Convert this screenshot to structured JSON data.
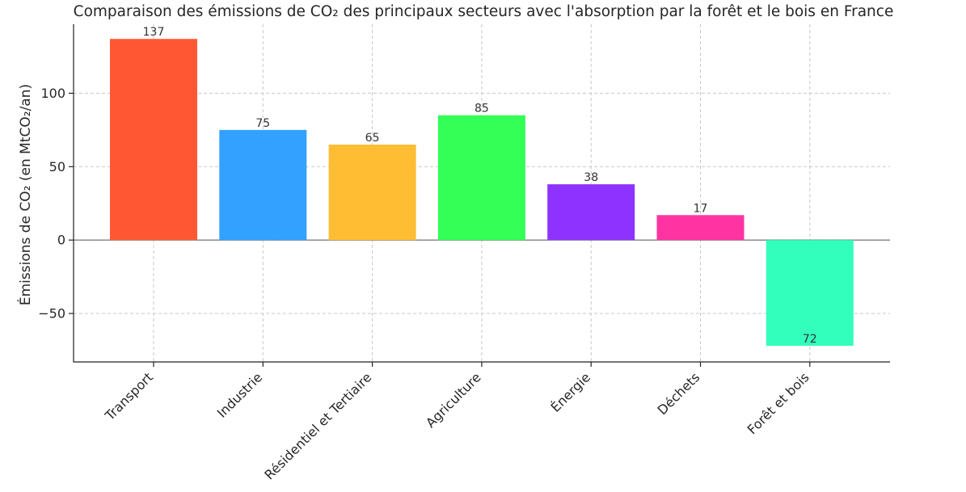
{
  "chart_data": {
    "type": "bar",
    "title": "Comparaison des émissions de CO₂ des principaux secteurs avec l'absorption par la forêt et le bois en France",
    "xlabel": "",
    "ylabel": "Émissions de CO₂ (en MtCO₂/an)",
    "categories": [
      "Transport",
      "Industrie",
      "Résidentiel et Tertiaire",
      "Agriculture",
      "Énergie",
      "Déchets",
      "Forêt et bois"
    ],
    "values": [
      137,
      75,
      65,
      85,
      38,
      17,
      -72
    ],
    "data_labels": [
      "137",
      "75",
      "65",
      "85",
      "38",
      "17",
      "72"
    ],
    "colors": [
      "#FF5733",
      "#33A1FF",
      "#FFBD33",
      "#33FF57",
      "#8E33FF",
      "#FF33A1",
      "#33FFBD"
    ],
    "ylim": [
      -83,
      147
    ],
    "yticks": [
      -50,
      0,
      50,
      100
    ],
    "ytick_labels": [
      "−50",
      "0",
      "50",
      "100"
    ],
    "grid": true
  }
}
